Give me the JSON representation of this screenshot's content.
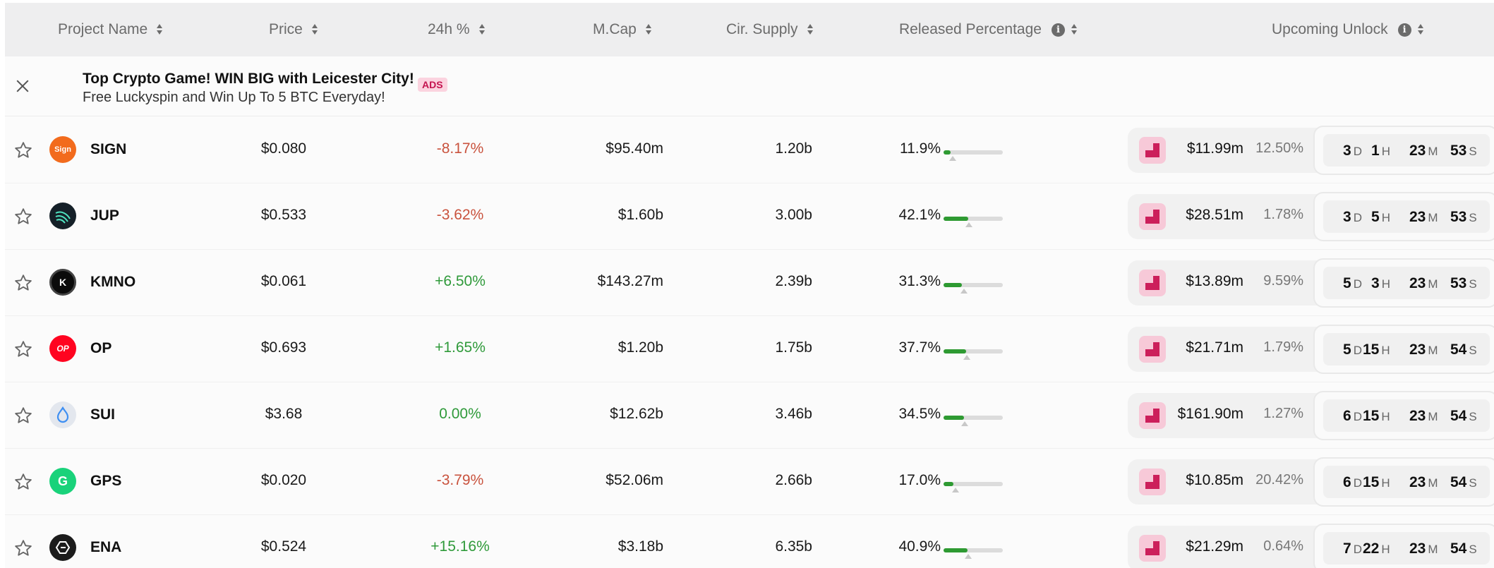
{
  "header": {
    "project_name": "Project Name",
    "price": "Price",
    "change_24h": "24h %",
    "mcap": "M.Cap",
    "supply": "Cir. Supply",
    "released": "Released Percentage",
    "upcoming": "Upcoming Unlock",
    "info_glyph": "i"
  },
  "ad": {
    "title": "Top Crypto Game! WIN BIG with Leicester City!",
    "subtitle": "Free Luckyspin and Win Up To 5 BTC Everyday!",
    "badge": "ADS"
  },
  "countdown_units": {
    "d": "D",
    "h": "H",
    "m": "M",
    "s": "S"
  },
  "rows": [
    {
      "name": "SIGN",
      "logo_icon": "sign-logo-icon",
      "logo_color": "#f26b1d",
      "logo_text": "Sign",
      "price": "$0.080",
      "change": "-8.17%",
      "trend": "neg",
      "mcap": "$95.40m",
      "supply": "1.20b",
      "released": "11.9%",
      "released_frac": 0.119,
      "next_frac": 0.15,
      "unlock_value": "$11.99m",
      "unlock_pct": "12.50%",
      "cd": {
        "d": "3",
        "h": "1",
        "m": "23",
        "s": "53"
      }
    },
    {
      "name": "JUP",
      "logo_icon": "jup-logo-icon",
      "logo_color": "#152028",
      "logo_text": "",
      "price": "$0.533",
      "change": "-3.62%",
      "trend": "neg",
      "mcap": "$1.60b",
      "supply": "3.00b",
      "released": "42.1%",
      "released_frac": 0.421,
      "next_frac": 0.43,
      "unlock_value": "$28.51m",
      "unlock_pct": "1.78%",
      "cd": {
        "d": "3",
        "h": "5",
        "m": "23",
        "s": "53"
      }
    },
    {
      "name": "KMNO",
      "logo_icon": "kmno-logo-icon",
      "logo_color": "#0b0b0b",
      "logo_text": "K",
      "price": "$0.061",
      "change": "+6.50%",
      "trend": "pos",
      "mcap": "$143.27m",
      "supply": "2.39b",
      "released": "31.3%",
      "released_frac": 0.313,
      "next_frac": 0.34,
      "unlock_value": "$13.89m",
      "unlock_pct": "9.59%",
      "cd": {
        "d": "5",
        "h": "3",
        "m": "23",
        "s": "53"
      }
    },
    {
      "name": "OP",
      "logo_icon": "op-logo-icon",
      "logo_color": "#ff0420",
      "logo_text": "OP",
      "price": "$0.693",
      "change": "+1.65%",
      "trend": "pos",
      "mcap": "$1.20b",
      "supply": "1.75b",
      "released": "37.7%",
      "released_frac": 0.377,
      "next_frac": 0.39,
      "unlock_value": "$21.71m",
      "unlock_pct": "1.79%",
      "cd": {
        "d": "5",
        "h": "15",
        "m": "23",
        "s": "54"
      }
    },
    {
      "name": "SUI",
      "logo_icon": "sui-logo-icon",
      "logo_color": "#e3e7ee",
      "logo_text": "",
      "price": "$3.68",
      "change": "0.00%",
      "trend": "pos",
      "mcap": "$12.62b",
      "supply": "3.46b",
      "released": "34.5%",
      "released_frac": 0.345,
      "next_frac": 0.36,
      "unlock_value": "$161.90m",
      "unlock_pct": "1.27%",
      "cd": {
        "d": "6",
        "h": "15",
        "m": "23",
        "s": "54"
      }
    },
    {
      "name": "GPS",
      "logo_icon": "gps-logo-icon",
      "logo_color": "#19d27a",
      "logo_text": "G",
      "price": "$0.020",
      "change": "-3.79%",
      "trend": "neg",
      "mcap": "$52.06m",
      "supply": "2.66b",
      "released": "17.0%",
      "released_frac": 0.17,
      "next_frac": 0.2,
      "unlock_value": "$10.85m",
      "unlock_pct": "20.42%",
      "cd": {
        "d": "6",
        "h": "15",
        "m": "23",
        "s": "54"
      }
    },
    {
      "name": "ENA",
      "logo_icon": "ena-logo-icon",
      "logo_color": "#1c1c1c",
      "logo_text": "",
      "price": "$0.524",
      "change": "+15.16%",
      "trend": "pos",
      "mcap": "$3.18b",
      "supply": "6.35b",
      "released": "40.9%",
      "released_frac": 0.409,
      "next_frac": 0.42,
      "unlock_value": "$21.29m",
      "unlock_pct": "0.64%",
      "cd": {
        "d": "7",
        "h": "22",
        "m": "23",
        "s": "54"
      }
    }
  ]
}
